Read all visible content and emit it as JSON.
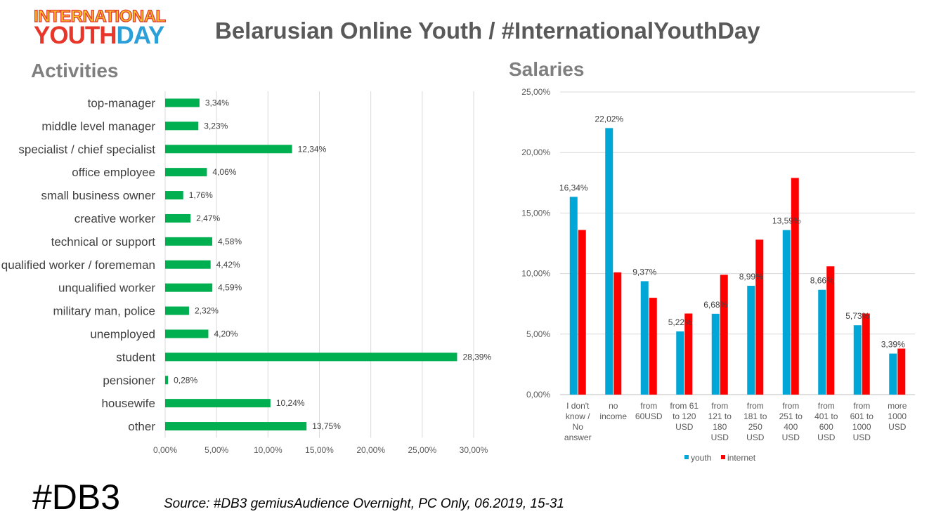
{
  "logo": {
    "line1": "INTERNATIONAL",
    "line2_a": "YOUTH",
    "line2_b": "DAY"
  },
  "header": {
    "title": "Belarusian Online Youth / #InternationalYouthDay"
  },
  "colors": {
    "activities_bar": "#00b050",
    "youth": "#00a6d6",
    "internet": "#ff0000",
    "title_text": "#595959",
    "section_title": "#7f7f7f",
    "gridline": "#d9d9d9"
  },
  "footer": {
    "tag": "#DB3",
    "source": "Source: #DB3 gemiusAudience Overnight, PC Only,  06.2019,  15-31"
  },
  "chart_data": [
    {
      "type": "bar",
      "orientation": "horizontal",
      "title": "Activities",
      "categories": [
        "top-manager",
        "middle level manager",
        "specialist / chief specialist",
        "office employee",
        "small business owner",
        "creative worker",
        "technical or support",
        "qualified worker / forememan",
        "unqualified worker",
        "military man, police",
        "unemployed",
        "student",
        "pensioner",
        "housewife",
        "other"
      ],
      "values": [
        3.34,
        3.23,
        12.34,
        4.06,
        1.76,
        2.47,
        4.58,
        4.42,
        4.59,
        2.32,
        4.2,
        28.39,
        0.28,
        10.24,
        13.75
      ],
      "labels": [
        "3,34%",
        "3,23%",
        "12,34%",
        "4,06%",
        "1,76%",
        "2,47%",
        "4,58%",
        "4,42%",
        "4,59%",
        "2,32%",
        "4,20%",
        "28,39%",
        "0,28%",
        "10,24%",
        "13,75%"
      ],
      "xlim": [
        0,
        30
      ],
      "xticks": [
        "0,00%",
        "5,00%",
        "10,00%",
        "15,00%",
        "20,00%",
        "25,00%",
        "30,00%"
      ],
      "grid": true
    },
    {
      "type": "bar",
      "title": "Salaries",
      "categories": [
        [
          "I don't",
          "know /",
          "No",
          "answer"
        ],
        [
          "no",
          "income"
        ],
        [
          "from",
          "60USD"
        ],
        [
          "from 61",
          "to 120",
          "USD"
        ],
        [
          "from",
          "121 to",
          "180",
          "USD"
        ],
        [
          "from",
          "181 to",
          "250",
          "USD"
        ],
        [
          "from",
          "251 to",
          "400",
          "USD"
        ],
        [
          "from",
          "401 to",
          "600",
          "USD"
        ],
        [
          "from",
          "601 to",
          "1000",
          "USD"
        ],
        [
          "more",
          "1000",
          "USD"
        ]
      ],
      "series": [
        {
          "name": "youth",
          "values": [
            16.34,
            22.02,
            9.37,
            5.22,
            6.68,
            8.99,
            13.59,
            8.66,
            5.73,
            3.39
          ],
          "labels": [
            "16,34%",
            "22,02%",
            "9,37%",
            "5,22%",
            "6,68%",
            "8,99%",
            "13,59%",
            "8,66%",
            "5,73%",
            "3,39%"
          ]
        },
        {
          "name": "internet",
          "values": [
            13.6,
            10.1,
            8.0,
            6.7,
            9.9,
            12.8,
            17.9,
            10.6,
            6.7,
            3.8
          ]
        }
      ],
      "ylim": [
        0,
        25
      ],
      "yticks": [
        "0,00%",
        "5,00%",
        "10,00%",
        "15,00%",
        "20,00%",
        "25,00%"
      ],
      "legend": "bottom",
      "grid": true
    }
  ]
}
